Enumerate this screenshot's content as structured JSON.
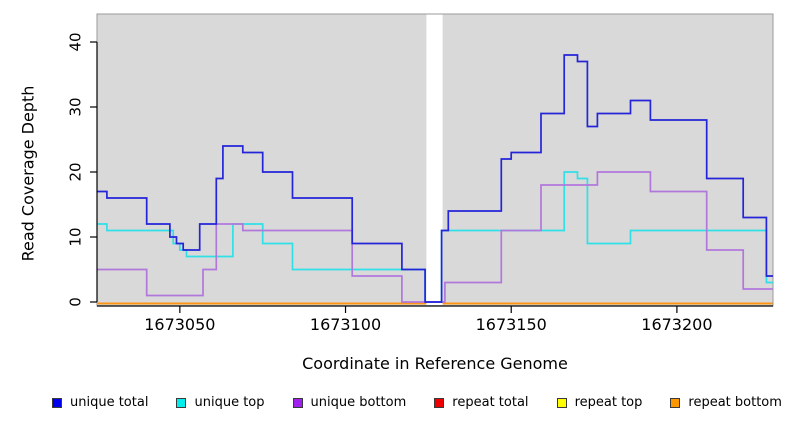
{
  "chart_data": {
    "type": "line",
    "subtype": "step-coverage",
    "title": "",
    "xlabel": "Coordinate in Reference Genome",
    "ylabel": "Read Coverage Depth",
    "xlim": [
      1673025,
      1673229
    ],
    "ylim": [
      0,
      43
    ],
    "grid": false,
    "plot_background": "#d9d9d9",
    "frame_color": "#9a9a9a",
    "axis_color": "#000000",
    "no_data_gap": {
      "from": 1673124.4,
      "to": 1673129.3
    },
    "xticks": [
      {
        "value": 1673050,
        "label": "1673050"
      },
      {
        "value": 1673100,
        "label": "1673100"
      },
      {
        "value": 1673150,
        "label": "1673150"
      },
      {
        "value": 1673200,
        "label": "1673200"
      }
    ],
    "yticks": [
      {
        "value": 0,
        "label": "0"
      },
      {
        "value": 10,
        "label": "10"
      },
      {
        "value": 20,
        "label": "20"
      },
      {
        "value": 30,
        "label": "30"
      },
      {
        "value": 40,
        "label": "40"
      }
    ],
    "series": [
      {
        "name": "repeat total",
        "color": "#e00000",
        "end_x": 1673229,
        "points": [
          [
            1673025,
            0
          ]
        ]
      },
      {
        "name": "repeat top",
        "color": "#ffff00",
        "end_x": 1673229,
        "points": [
          [
            1673025,
            0
          ]
        ]
      },
      {
        "name": "repeat bottom",
        "color": "#ff9414",
        "end_x": 1673229,
        "points": [
          [
            1673025,
            0
          ]
        ]
      },
      {
        "name": "unique top",
        "color": "#2fe0e8",
        "end_x": 1673229,
        "points": [
          [
            1673025,
            12
          ],
          [
            1673028,
            11
          ],
          [
            1673048,
            9
          ],
          [
            1673050,
            8
          ],
          [
            1673052,
            7
          ],
          [
            1673066,
            12
          ],
          [
            1673075,
            9
          ],
          [
            1673084,
            5
          ],
          [
            1673124,
            0
          ],
          [
            1673129,
            11
          ],
          [
            1673166,
            20
          ],
          [
            1673170,
            19
          ],
          [
            1673173,
            9
          ],
          [
            1673186,
            11
          ],
          [
            1673227,
            3
          ]
        ]
      },
      {
        "name": "unique bottom",
        "color": "#b178dc",
        "end_x": 1673229,
        "points": [
          [
            1673025,
            5
          ],
          [
            1673040,
            1
          ],
          [
            1673057,
            5
          ],
          [
            1673061,
            12
          ],
          [
            1673069,
            11
          ],
          [
            1673102,
            4
          ],
          [
            1673117,
            0
          ],
          [
            1673130,
            3
          ],
          [
            1673147,
            11
          ],
          [
            1673159,
            18
          ],
          [
            1673176,
            20
          ],
          [
            1673192,
            17
          ],
          [
            1673209,
            8
          ],
          [
            1673220,
            2
          ]
        ]
      },
      {
        "name": "unique total",
        "color": "#2424d8",
        "end_x": 1673229,
        "points": [
          [
            1673025,
            17
          ],
          [
            1673028,
            16
          ],
          [
            1673040,
            12
          ],
          [
            1673047,
            10
          ],
          [
            1673049,
            9
          ],
          [
            1673051,
            8
          ],
          [
            1673056,
            12
          ],
          [
            1673061,
            19
          ],
          [
            1673063,
            24
          ],
          [
            1673069,
            23
          ],
          [
            1673075,
            20
          ],
          [
            1673084,
            16
          ],
          [
            1673102,
            9
          ],
          [
            1673117,
            5
          ],
          [
            1673124,
            0
          ],
          [
            1673129,
            11
          ],
          [
            1673131,
            14
          ],
          [
            1673147,
            22
          ],
          [
            1673150,
            23
          ],
          [
            1673159,
            29
          ],
          [
            1673166,
            38
          ],
          [
            1673170,
            37
          ],
          [
            1673173,
            27
          ],
          [
            1673176,
            29
          ],
          [
            1673186,
            31
          ],
          [
            1673192,
            28
          ],
          [
            1673209,
            19
          ],
          [
            1673220,
            13
          ],
          [
            1673227,
            4
          ]
        ]
      }
    ],
    "legend": [
      {
        "label": "unique total",
        "color": "#0000ee"
      },
      {
        "label": "unique top",
        "color": "#00eeee"
      },
      {
        "label": "unique bottom",
        "color": "#a020f0"
      },
      {
        "label": "repeat total",
        "color": "#ee0000"
      },
      {
        "label": "repeat top",
        "color": "#ffff00"
      },
      {
        "label": "repeat bottom",
        "color": "#ff9800"
      }
    ]
  }
}
